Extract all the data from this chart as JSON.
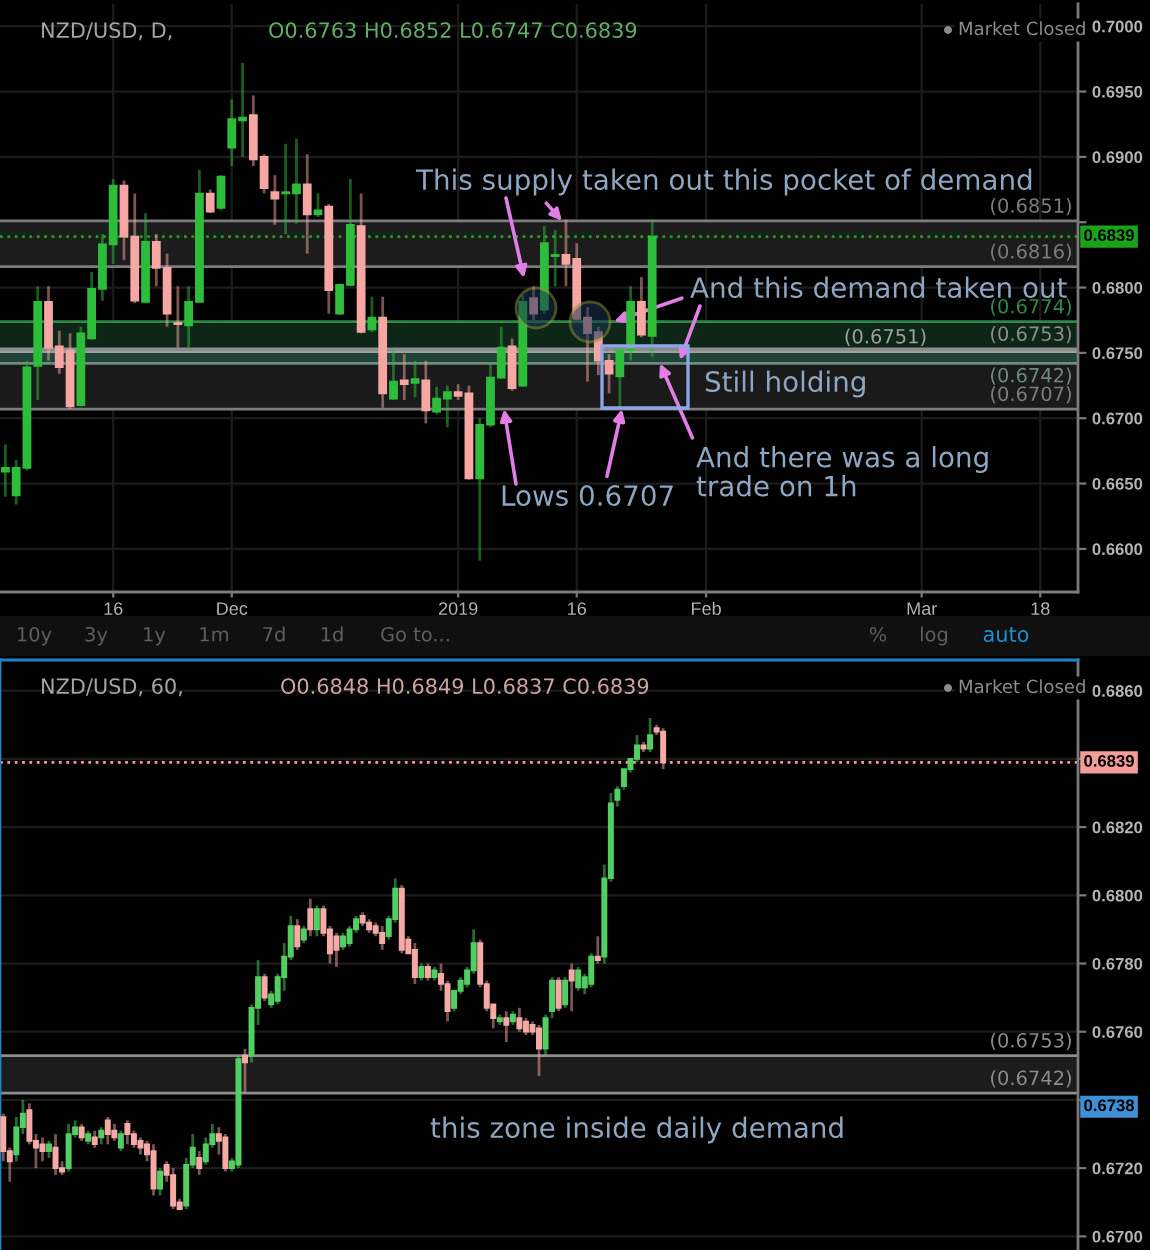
{
  "chart_data": [
    {
      "type": "candlestick",
      "title": "NZD/USD, D,",
      "subtitle": "O0.6763 H0.6852 L0.6747 C0.6839",
      "categories": [
        null,
        null,
        null,
        null,
        null,
        null,
        null,
        null,
        null,
        null,
        "16",
        null,
        null,
        null,
        null,
        null,
        null,
        null,
        null,
        null,
        null,
        "Dec",
        null,
        null,
        null,
        null,
        null,
        null,
        null,
        null,
        null,
        null,
        null,
        null,
        null,
        null,
        null,
        null,
        null,
        null,
        null,
        null,
        "2019",
        null,
        null,
        null,
        null,
        null,
        null,
        null,
        null,
        null,
        null,
        "16",
        null,
        null,
        null,
        null,
        null,
        null,
        null,
        null,
        null,
        null,
        null,
        "Feb",
        null,
        null,
        null,
        null,
        null,
        null,
        null,
        null,
        null,
        null,
        null,
        null,
        null,
        null,
        null,
        null,
        null,
        null,
        null,
        "Mar",
        null,
        null,
        null,
        null,
        null,
        null,
        null,
        null,
        null,
        null,
        "18",
        null,
        null,
        null
      ],
      "ohlc": [
        [
          0.6659,
          0.668,
          0.664,
          0.6662
        ],
        [
          0.6641,
          0.6668,
          0.6634,
          0.6662
        ],
        [
          0.6662,
          0.6744,
          0.666,
          0.6739
        ],
        [
          0.674,
          0.6801,
          0.6714,
          0.6789
        ],
        [
          0.6789,
          0.6801,
          0.6744,
          0.6754
        ],
        [
          0.6755,
          0.6767,
          0.6734,
          0.6739
        ],
        [
          0.6752,
          0.6765,
          0.6707,
          0.6709
        ],
        [
          0.671,
          0.677,
          0.6709,
          0.6765
        ],
        [
          0.6761,
          0.6812,
          0.676,
          0.6799
        ],
        [
          0.6799,
          0.6841,
          0.679,
          0.6833
        ],
        [
          0.6833,
          0.6883,
          0.6818,
          0.6878
        ],
        [
          0.6878,
          0.6882,
          0.6821,
          0.6839
        ],
        [
          0.6839,
          0.6872,
          0.6788,
          0.679
        ],
        [
          0.6789,
          0.6857,
          0.6788,
          0.6835
        ],
        [
          0.6835,
          0.6841,
          0.6801,
          0.6815
        ],
        [
          0.6815,
          0.6826,
          0.677,
          0.678
        ],
        [
          0.6773,
          0.6801,
          0.6754,
          0.6772
        ],
        [
          0.6771,
          0.6801,
          0.6754,
          0.6789
        ],
        [
          0.6789,
          0.689,
          0.6788,
          0.6872
        ],
        [
          0.6872,
          0.6875,
          0.6857,
          0.6858
        ],
        [
          0.6861,
          0.6886,
          0.6859,
          0.6885
        ],
        [
          0.6907,
          0.6944,
          0.6893,
          0.6929
        ],
        [
          0.6928,
          0.6972,
          0.69,
          0.693
        ],
        [
          0.6932,
          0.6947,
          0.6893,
          0.6898
        ],
        [
          0.69,
          0.6902,
          0.6872,
          0.6876
        ],
        [
          0.6873,
          0.6886,
          0.6848,
          0.6868
        ],
        [
          0.6872,
          0.691,
          0.6841,
          0.6873
        ],
        [
          0.6872,
          0.6914,
          0.6849,
          0.6879
        ],
        [
          0.6879,
          0.6902,
          0.6826,
          0.6856
        ],
        [
          0.6856,
          0.6872,
          0.6854,
          0.6859
        ],
        [
          0.6862,
          0.6864,
          0.678,
          0.6798
        ],
        [
          0.678,
          0.6803,
          0.6779,
          0.6802
        ],
        [
          0.6802,
          0.6883,
          0.6801,
          0.6848
        ],
        [
          0.6847,
          0.6872,
          0.6765,
          0.6766
        ],
        [
          0.6768,
          0.6793,
          0.6766,
          0.6777
        ],
        [
          0.6777,
          0.6793,
          0.6708,
          0.6719
        ],
        [
          0.6715,
          0.6752,
          0.6714,
          0.6728
        ],
        [
          0.6729,
          0.6749,
          0.6714,
          0.6726
        ],
        [
          0.6727,
          0.6744,
          0.6716,
          0.673
        ],
        [
          0.6729,
          0.6744,
          0.6696,
          0.6706
        ],
        [
          0.6705,
          0.6724,
          0.6703,
          0.6715
        ],
        [
          0.6715,
          0.6725,
          0.6693,
          0.672
        ],
        [
          0.672,
          0.6726,
          0.6714,
          0.6717
        ],
        [
          0.6719,
          0.6725,
          0.6653,
          0.6654
        ],
        [
          0.6654,
          0.67,
          0.6591,
          0.6695
        ],
        [
          0.6695,
          0.6742,
          0.6693,
          0.6731
        ],
        [
          0.6731,
          0.677,
          0.673,
          0.6754
        ],
        [
          0.6755,
          0.6761,
          0.6721,
          0.6723
        ],
        [
          0.6725,
          0.6794,
          0.6724,
          0.6789
        ],
        [
          0.6792,
          0.6801,
          0.6775,
          0.678
        ],
        [
          0.6783,
          0.6847,
          0.678,
          0.6834
        ],
        [
          0.6824,
          0.6844,
          0.6801,
          0.6825
        ],
        [
          0.6825,
          0.6852,
          0.6801,
          0.6818
        ],
        [
          0.6822,
          0.6834,
          0.6775,
          0.6776
        ],
        [
          0.6777,
          0.6785,
          0.6728,
          0.6765
        ],
        [
          0.6766,
          0.677,
          0.6733,
          0.6744
        ],
        [
          0.6744,
          0.6749,
          0.6719,
          0.6734
        ],
        [
          0.6732,
          0.6754,
          0.6707,
          0.6752
        ],
        [
          0.6752,
          0.6801,
          0.6744,
          0.6789
        ],
        [
          0.6789,
          0.6808,
          0.6762,
          0.6764
        ],
        [
          0.6763,
          0.6852,
          0.6747,
          0.6839
        ],
        null,
        null,
        null,
        null,
        null,
        null,
        null,
        null,
        null,
        null,
        null,
        null,
        null,
        null,
        null,
        null,
        null,
        null,
        null,
        null,
        null,
        null,
        null,
        null,
        null,
        null,
        null,
        null,
        null,
        null,
        null,
        null,
        null,
        null,
        null,
        null,
        null,
        null,
        null
      ],
      "colors": [
        "#2ebd3a",
        "#2ebd3a",
        "#2ebd3a",
        "#2ebd3a",
        "#f6a6a3",
        "#f6a6a3",
        "#f6a6a3",
        "#2ebd3a",
        "#2ebd3a",
        "#2ebd3a",
        "#2ebd3a",
        "#f6a6a3",
        "#f6a6a3",
        "#2ebd3a",
        "#f6a6a3",
        "#f6a6a3",
        "#f6a6a3",
        "#2ebd3a",
        "#2ebd3a",
        "#f6a6a3",
        "#2ebd3a",
        "#2ebd3a",
        "#2ebd3a",
        "#f6a6a3",
        "#f6a6a3",
        "#f6a6a3",
        "#2ebd3a",
        "#2ebd3a",
        "#f6a6a3",
        "#2ebd3a",
        "#f6a6a3",
        "#2ebd3a",
        "#2ebd3a",
        "#f6a6a3",
        "#2ebd3a",
        "#f6a6a3",
        "#2ebd3a",
        "#f6a6a3",
        "#2ebd3a",
        "#f6a6a3",
        "#2ebd3a",
        "#2ebd3a",
        "#f6a6a3",
        "#f6a6a3",
        "#2ebd3a",
        "#2ebd3a",
        "#2ebd3a",
        "#f6a6a3",
        "#2ebd3a",
        "#f6a6a3",
        "#2ebd3a",
        "#2ebd3a",
        "#f6a6a3",
        "#f6a6a3",
        "#f6a6a3",
        "#f6a6a3",
        "#f6a6a3",
        "#2ebd3a",
        "#2ebd3a",
        "#f6a6a3",
        "#2ebd3a",
        null,
        null,
        null,
        null,
        null,
        null,
        null,
        null,
        null,
        null,
        null,
        null,
        null,
        null,
        null,
        null,
        null,
        null,
        null,
        null,
        null,
        null,
        null,
        null,
        null,
        null,
        null,
        null,
        null,
        null,
        null,
        null,
        null,
        null,
        null,
        null,
        null,
        null,
        null
      ],
      "ylim": [
        0.6567,
        0.7017
      ],
      "yticks": [
        {
          "value": 0.66,
          "label": "0.6600"
        },
        {
          "value": 0.665,
          "label": "0.6650"
        },
        {
          "value": 0.67,
          "label": "0.6700"
        },
        {
          "value": 0.675,
          "label": "0.6750"
        },
        {
          "value": 0.68,
          "label": "0.6800"
        },
        {
          "value": 0.685,
          "label": null
        },
        {
          "value": 0.69,
          "label": "0.6900"
        },
        {
          "value": 0.695,
          "label": "0.6950"
        },
        {
          "value": 0.7,
          "label": "0.7000"
        }
      ],
      "grid": true,
      "bands": [
        {
          "axis": "y",
          "from": 0.6816,
          "to": 0.6851,
          "color": "#1c1c1c"
        },
        {
          "axis": "y",
          "from": 0.6751,
          "to": 0.6774,
          "color": "#0d2618"
        },
        {
          "axis": "y",
          "from": 0.6742,
          "to": 0.6753,
          "color": "#1f4437"
        },
        {
          "axis": "y",
          "from": 0.6707,
          "to": 0.6742,
          "color": "#1a1a1a"
        }
      ],
      "ref_lines": [
        {
          "axis": "y",
          "value": 0.6839,
          "label": "0.6839",
          "color": "#19a319",
          "line_style": "dotted"
        },
        {
          "axis": "y",
          "value": 0.6851,
          "label": "(0.6851)",
          "color": "#7c7c7c"
        },
        {
          "axis": "y",
          "value": 0.6816,
          "label": "(0.6816)",
          "color": "#7c7c7c"
        },
        {
          "axis": "y",
          "value": 0.6774,
          "label": "(0.6774)",
          "color": "#2e8a44"
        },
        {
          "axis": "y",
          "value": 0.6753,
          "label": "(0.6753)",
          "color": "#8c8c8c"
        },
        {
          "axis": "y",
          "value": 0.6751,
          "label": "(0.6751)",
          "color": "#a0a0a0"
        },
        {
          "axis": "y",
          "value": 0.6742,
          "label": "(0.6742)",
          "color": "#6f8a80"
        },
        {
          "axis": "y",
          "value": 0.6707,
          "label": "(0.6707)",
          "color": "#7c7c7c"
        }
      ],
      "annotations": [
        {
          "text": "This supply taken out this pocket of demand",
          "y": 0.6851
        },
        {
          "text": "And this demand taken out",
          "y": 0.6774
        },
        "Still holding",
        {
          "text": "Lows 0.6707",
          "y": 0.6707
        },
        {
          "text": "And there was a long\ntrade on 1h",
          "y": 0.6742
        },
        "Market Closed",
        "10y",
        "3y",
        "1y",
        "1m",
        "7d",
        "1d",
        "Go to...",
        "%",
        "log",
        "auto"
      ]
    },
    {
      "type": "candlestick",
      "title": "NZD/USD, 60,",
      "subtitle": "O0.6848 H0.6849 L0.6837 C0.6839",
      "tick_labels": "y",
      "categories": [
        null,
        null,
        null,
        null,
        null,
        null,
        null,
        null,
        null,
        null,
        null,
        null,
        null,
        null,
        null,
        null,
        null,
        null,
        null,
        null,
        null,
        null,
        null,
        null,
        null,
        null,
        null,
        null,
        null,
        null,
        null,
        null,
        null,
        null,
        null,
        null,
        null,
        null,
        null,
        null,
        null,
        null,
        null,
        null,
        null,
        null,
        null,
        null,
        null,
        null,
        null,
        null,
        null,
        null,
        null,
        null,
        null,
        null,
        null,
        null,
        null,
        null,
        null,
        null,
        null,
        null,
        null,
        null,
        null,
        null,
        null,
        null,
        null,
        null,
        null,
        null,
        null,
        null,
        null,
        null,
        null,
        null,
        null,
        null,
        null,
        null,
        null,
        null,
        null,
        null,
        null,
        null,
        null,
        null,
        null,
        null,
        null,
        null,
        null,
        null,
        null,
        null,
        null,
        null,
        null,
        null,
        null,
        null,
        null,
        null,
        null,
        null,
        null,
        null,
        null,
        null,
        null,
        null,
        null,
        null,
        null,
        null,
        null,
        null,
        null,
        null,
        null,
        null,
        null,
        null,
        null,
        null,
        null,
        null,
        null,
        null,
        null,
        null,
        null,
        null,
        null,
        null,
        null,
        null,
        null,
        null,
        null,
        null,
        null,
        null,
        null,
        null,
        null,
        null,
        null,
        null,
        null,
        null,
        null,
        null,
        null,
        null,
        null,
        null,
        null
      ],
      "ohlc": [
        [
          0.6735,
          0.6736,
          0.6722,
          0.6725
        ],
        [
          0.6725,
          0.6726,
          0.6716,
          0.6722
        ],
        [
          0.6724,
          0.6735,
          0.6722,
          0.6732
        ],
        [
          0.6732,
          0.674,
          0.673,
          0.6736
        ],
        [
          0.6737,
          0.6739,
          0.6727,
          0.6728
        ],
        [
          0.6728,
          0.673,
          0.672,
          0.6726
        ],
        [
          0.6727,
          0.6729,
          0.6722,
          0.6725
        ],
        [
          0.6725,
          0.6728,
          0.6723,
          0.6727
        ],
        [
          0.6726,
          0.673,
          0.6718,
          0.672
        ],
        [
          0.672,
          0.6722,
          0.6718,
          0.6719
        ],
        [
          0.672,
          0.6733,
          0.6719,
          0.673
        ],
        [
          0.673,
          0.6734,
          0.6729,
          0.6732
        ],
        [
          0.6732,
          0.6733,
          0.6728,
          0.6729
        ],
        [
          0.6728,
          0.6731,
          0.6727,
          0.673
        ],
        [
          0.6729,
          0.6731,
          0.6726,
          0.6727
        ],
        [
          0.6729,
          0.6732,
          0.6727,
          0.6731
        ],
        [
          0.6734,
          0.6735,
          0.6727,
          0.673
        ],
        [
          0.6731,
          0.6733,
          0.6728,
          0.6729
        ],
        [
          0.6726,
          0.6731,
          0.6725,
          0.673
        ],
        [
          0.6733,
          0.6734,
          0.6727,
          0.673
        ],
        [
          0.673,
          0.6731,
          0.6726,
          0.6727
        ],
        [
          0.6728,
          0.6729,
          0.6724,
          0.6726
        ],
        [
          0.6727,
          0.6728,
          0.6722,
          0.6724
        ],
        [
          0.6725,
          0.6727,
          0.6712,
          0.6714
        ],
        [
          0.6714,
          0.672,
          0.6712,
          0.6719
        ],
        [
          0.6721,
          0.6722,
          0.6716,
          0.6718
        ],
        [
          0.6718,
          0.672,
          0.6708,
          0.6709
        ],
        [
          0.671,
          0.6711,
          0.6708,
          0.6708
        ],
        [
          0.6709,
          0.6723,
          0.6708,
          0.6721
        ],
        [
          0.6721,
          0.673,
          0.672,
          0.6726
        ],
        [
          0.6723,
          0.6725,
          0.6718,
          0.672
        ],
        [
          0.6722,
          0.6729,
          0.6721,
          0.6727
        ],
        [
          0.6727,
          0.6733,
          0.6726,
          0.673
        ],
        [
          0.673,
          0.6732,
          0.6724,
          0.6728
        ],
        [
          0.6729,
          0.673,
          0.6719,
          0.672
        ],
        [
          0.672,
          0.6723,
          0.6719,
          0.6722
        ],
        [
          0.6721,
          0.6753,
          0.672,
          0.6752
        ],
        [
          0.6753,
          0.6755,
          0.6742,
          0.6751
        ],
        [
          0.6753,
          0.6768,
          0.6751,
          0.6767
        ],
        [
          0.6767,
          0.6781,
          0.6762,
          0.6776
        ],
        [
          0.6776,
          0.6777,
          0.6769,
          0.677
        ],
        [
          0.6768,
          0.6772,
          0.6767,
          0.6771
        ],
        [
          0.6769,
          0.6777,
          0.6768,
          0.6776
        ],
        [
          0.6776,
          0.6786,
          0.6772,
          0.6782
        ],
        [
          0.6782,
          0.6794,
          0.6781,
          0.6791
        ],
        [
          0.6791,
          0.6793,
          0.6784,
          0.6785
        ],
        [
          0.6787,
          0.6791,
          0.6786,
          0.679
        ],
        [
          0.6796,
          0.6799,
          0.6788,
          0.679
        ],
        [
          0.679,
          0.6797,
          0.6788,
          0.6796
        ],
        [
          0.6796,
          0.6797,
          0.6788,
          0.6789
        ],
        [
          0.679,
          0.6791,
          0.678,
          0.6783
        ],
        [
          0.6788,
          0.6789,
          0.6779,
          0.6784
        ],
        [
          0.6785,
          0.6789,
          0.6784,
          0.6788
        ],
        [
          0.6786,
          0.6791,
          0.6785,
          0.679
        ],
        [
          0.679,
          0.6794,
          0.6789,
          0.6793
        ],
        [
          0.6794,
          0.6795,
          0.6791,
          0.6792
        ],
        [
          0.6792,
          0.6793,
          0.6789,
          0.679
        ],
        [
          0.6791,
          0.6792,
          0.6788,
          0.6789
        ],
        [
          0.6789,
          0.6791,
          0.6784,
          0.6786
        ],
        [
          0.6788,
          0.6794,
          0.6787,
          0.6793
        ],
        [
          0.6793,
          0.6805,
          0.6792,
          0.6802
        ],
        [
          0.6802,
          0.6803,
          0.6783,
          0.6784
        ],
        [
          0.6787,
          0.6788,
          0.6783,
          0.6783
        ],
        [
          0.6784,
          0.6786,
          0.6774,
          0.6776
        ],
        [
          0.6776,
          0.678,
          0.6775,
          0.6779
        ],
        [
          0.6779,
          0.678,
          0.6775,
          0.6776
        ],
        [
          0.6776,
          0.6779,
          0.6775,
          0.6778
        ],
        [
          0.6777,
          0.678,
          0.6772,
          0.6774
        ],
        [
          0.6774,
          0.6775,
          0.6763,
          0.6766
        ],
        [
          0.6767,
          0.6772,
          0.6766,
          0.6772
        ],
        [
          0.6772,
          0.6776,
          0.6771,
          0.6775
        ],
        [
          0.6774,
          0.6779,
          0.6773,
          0.6778
        ],
        [
          0.6778,
          0.679,
          0.6777,
          0.6786
        ],
        [
          0.6786,
          0.6787,
          0.6773,
          0.6774
        ],
        [
          0.6774,
          0.6775,
          0.6766,
          0.6767
        ],
        [
          0.6768,
          0.6768,
          0.6761,
          0.6764
        ],
        [
          0.6763,
          0.6765,
          0.6762,
          0.6764
        ],
        [
          0.6764,
          0.6766,
          0.6757,
          0.6762
        ],
        [
          0.6763,
          0.6766,
          0.6762,
          0.6765
        ],
        [
          0.6764,
          0.6767,
          0.676,
          0.6761
        ],
        [
          0.6763,
          0.6764,
          0.6759,
          0.676
        ],
        [
          0.6762,
          0.6763,
          0.6759,
          0.676
        ],
        [
          0.6761,
          0.6762,
          0.6747,
          0.6755
        ],
        [
          0.6755,
          0.6765,
          0.6753,
          0.6764
        ],
        [
          0.6766,
          0.6776,
          0.6764,
          0.6775
        ],
        [
          0.6775,
          0.6776,
          0.6766,
          0.6767
        ],
        [
          0.6768,
          0.6776,
          0.6767,
          0.6775
        ],
        [
          0.6778,
          0.678,
          0.6766,
          0.6775
        ],
        [
          0.6773,
          0.6779,
          0.6772,
          0.6778
        ],
        [
          0.6773,
          0.6777,
          0.6771,
          0.6776
        ],
        [
          0.6774,
          0.6783,
          0.6773,
          0.6782
        ],
        [
          0.6782,
          0.6788,
          0.678,
          0.6781
        ],
        [
          0.6782,
          0.6809,
          0.678,
          0.6805
        ],
        [
          0.6805,
          0.683,
          0.6804,
          0.6827
        ],
        [
          0.6828,
          0.6832,
          0.6826,
          0.6831
        ],
        [
          0.6832,
          0.6837,
          0.6831,
          0.6837
        ],
        [
          0.6837,
          0.684,
          0.6836,
          0.684
        ],
        [
          0.684,
          0.6847,
          0.6839,
          0.6844
        ],
        [
          0.6844,
          0.6845,
          0.6842,
          0.6843
        ],
        [
          0.6843,
          0.6852,
          0.6842,
          0.6847
        ],
        [
          0.6849,
          0.685,
          0.6847,
          0.6848
        ],
        [
          0.6848,
          0.6849,
          0.6837,
          0.6839
        ],
        null,
        null,
        null,
        null,
        null,
        null,
        null,
        null,
        null,
        null,
        null,
        null,
        null,
        null,
        null,
        null,
        null,
        null,
        null,
        null,
        null,
        null,
        null,
        null,
        null,
        null,
        null,
        null,
        null,
        null,
        null,
        null,
        null,
        null,
        null,
        null,
        null,
        null,
        null,
        null,
        null,
        null,
        null,
        null,
        null,
        null,
        null,
        null,
        null,
        null,
        null,
        null,
        null,
        null,
        null,
        null,
        null,
        null,
        null,
        null,
        null,
        null,
        null
      ],
      "colors": [
        "#f5aaa6",
        "#f5aaa6",
        "#52cf62",
        "#52cf62",
        "#f5aaa6",
        "#f5aaa6",
        "#f5aaa6",
        "#52cf62",
        "#f5aaa6",
        "#f5aaa6",
        "#52cf62",
        "#52cf62",
        "#f5aaa6",
        "#52cf62",
        "#f5aaa6",
        "#52cf62",
        "#f5aaa6",
        "#f5aaa6",
        "#52cf62",
        "#f5aaa6",
        "#f5aaa6",
        "#f5aaa6",
        "#f5aaa6",
        "#f5aaa6",
        "#52cf62",
        "#f5aaa6",
        "#f5aaa6",
        "#f5aaa6",
        "#52cf62",
        "#52cf62",
        "#f5aaa6",
        "#52cf62",
        "#52cf62",
        "#f5aaa6",
        "#f5aaa6",
        "#52cf62",
        "#52cf62",
        "#f5aaa6",
        "#52cf62",
        "#52cf62",
        "#f5aaa6",
        "#52cf62",
        "#52cf62",
        "#52cf62",
        "#52cf62",
        "#f5aaa6",
        "#52cf62",
        "#f5aaa6",
        "#52cf62",
        "#f5aaa6",
        "#f5aaa6",
        "#f5aaa6",
        "#52cf62",
        "#52cf62",
        "#52cf62",
        "#f5aaa6",
        "#f5aaa6",
        "#f5aaa6",
        "#f5aaa6",
        "#52cf62",
        "#52cf62",
        "#f5aaa6",
        "#f5aaa6",
        "#f5aaa6",
        "#52cf62",
        "#f5aaa6",
        "#52cf62",
        "#f5aaa6",
        "#f5aaa6",
        "#52cf62",
        "#52cf62",
        "#52cf62",
        "#52cf62",
        "#f5aaa6",
        "#f5aaa6",
        "#f5aaa6",
        "#52cf62",
        "#f5aaa6",
        "#52cf62",
        "#f5aaa6",
        "#f5aaa6",
        "#f5aaa6",
        "#f5aaa6",
        "#52cf62",
        "#52cf62",
        "#f5aaa6",
        "#52cf62",
        "#f5aaa6",
        "#52cf62",
        "#52cf62",
        "#52cf62",
        "#f5aaa6",
        "#52cf62",
        "#52cf62",
        "#52cf62",
        "#52cf62",
        "#52cf62",
        "#52cf62",
        "#f5aaa6",
        "#52cf62",
        "#f5aaa6",
        "#f5aaa6",
        null,
        null,
        null,
        null,
        null,
        null,
        null,
        null,
        null,
        null,
        null,
        null,
        null,
        null,
        null,
        null,
        null,
        null,
        null,
        null,
        null,
        null,
        null,
        null,
        null,
        null,
        null,
        null,
        null,
        null,
        null,
        null,
        null,
        null,
        null,
        null,
        null,
        null,
        null,
        null,
        null,
        null,
        null,
        null,
        null,
        null,
        null,
        null,
        null,
        null,
        null,
        null,
        null,
        null,
        null,
        null,
        null,
        null,
        null,
        null,
        null,
        null,
        null
      ],
      "ylim": [
        0.6696,
        0.6869
      ],
      "yticks": [
        {
          "value": 0.67,
          "label": "0.6700"
        },
        {
          "value": 0.672,
          "label": "0.6720"
        },
        {
          "value": 0.674,
          "label": null
        },
        {
          "value": 0.676,
          "label": "0.6760"
        },
        {
          "value": 0.678,
          "label": "0.6780"
        },
        {
          "value": 0.68,
          "label": "0.6800"
        },
        {
          "value": 0.682,
          "label": "0.6820"
        },
        {
          "value": 0.684,
          "label": null
        },
        {
          "value": 0.686,
          "label": "0.6860"
        }
      ],
      "grid": "y",
      "bands": [
        {
          "axis": "y",
          "from": 0.6742,
          "to": 0.6753,
          "color": "#1c1c1c"
        }
      ],
      "ref_lines": [
        {
          "axis": "y",
          "value": 0.6839,
          "label": "0.6839",
          "color": "#f29c9c",
          "line_style": "dotted"
        },
        {
          "axis": "y",
          "value": 0.6753,
          "label": "(0.6753)",
          "color": "#8c8c8c"
        },
        {
          "axis": "y",
          "value": 0.6742,
          "label": "(0.6742)",
          "color": "#8c8c8c"
        }
      ],
      "annotations": [
        "this zone inside daily demand",
        "Market Closed",
        {
          "text": "0.6738",
          "y": 0.6738
        }
      ]
    }
  ]
}
